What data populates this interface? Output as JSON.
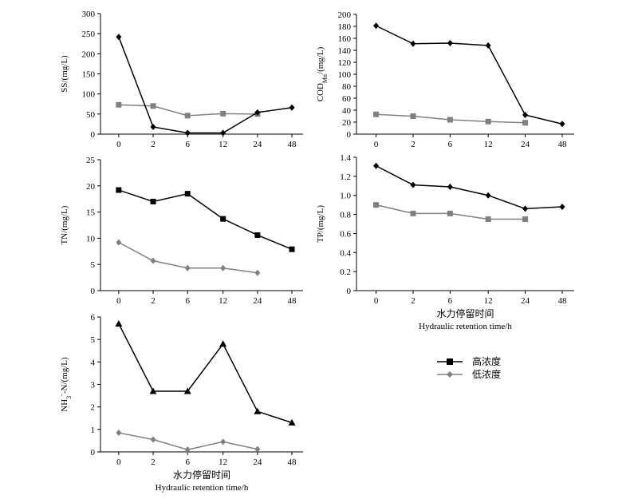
{
  "chart_data": [
    {
      "type": "line",
      "ylabel": "SS/(mg/L)",
      "categories": [
        "0",
        "2",
        "6",
        "12",
        "24",
        "48"
      ],
      "yticks": [
        "0",
        "50",
        "100",
        "150",
        "200",
        "250",
        "300"
      ],
      "ylim": [
        0,
        300
      ],
      "series": [
        {
          "name": "high",
          "marker": "diamond",
          "color": "#000000",
          "values": [
            242,
            18,
            3,
            3,
            54,
            66
          ]
        },
        {
          "name": "low",
          "marker": "square",
          "color": "#808080",
          "values": [
            73,
            70,
            46,
            51,
            50,
            null
          ]
        }
      ]
    },
    {
      "type": "line",
      "ylabel": "COD",
      "ylabel_sub": "Mn",
      "ylabel_tail": "/(mg/L)",
      "categories": [
        "0",
        "2",
        "6",
        "12",
        "24",
        "48"
      ],
      "yticks": [
        "0",
        "20",
        "40",
        "60",
        "80",
        "100",
        "120",
        "140",
        "160",
        "180",
        "200"
      ],
      "ylim": [
        0,
        200
      ],
      "series": [
        {
          "name": "high",
          "marker": "diamond",
          "color": "#000000",
          "values": [
            181,
            151,
            152,
            148,
            32,
            17
          ]
        },
        {
          "name": "low",
          "marker": "square",
          "color": "#808080",
          "values": [
            33,
            30,
            24,
            21,
            19,
            null
          ]
        }
      ]
    },
    {
      "type": "line",
      "ylabel": "TN/(mg/L)",
      "categories": [
        "0",
        "2",
        "6",
        "12",
        "24",
        "48"
      ],
      "yticks": [
        "0",
        "5",
        "10",
        "15",
        "20",
        "25"
      ],
      "ylim": [
        0,
        25
      ],
      "series": [
        {
          "name": "高浓度",
          "marker": "square",
          "color": "#000000",
          "values": [
            19.2,
            17.0,
            18.5,
            13.7,
            10.6,
            7.9
          ]
        },
        {
          "name": "低浓度",
          "marker": "diamond",
          "color": "#808080",
          "values": [
            9.2,
            5.7,
            4.3,
            4.3,
            3.4,
            null
          ]
        }
      ]
    },
    {
      "type": "line",
      "ylabel": "TP/(mg/L)",
      "categories": [
        "0",
        "2",
        "6",
        "12",
        "24",
        "48"
      ],
      "yticks": [
        "0",
        "0.2",
        "0.4",
        "0.6",
        "0.8",
        "1.0",
        "1.2",
        "1.4"
      ],
      "ylim": [
        0,
        1.4
      ],
      "xlabel_cn": "水力停留时间",
      "xlabel_en": "Hydraulic retention time/h",
      "series": [
        {
          "name": "high",
          "marker": "diamond",
          "color": "#000000",
          "values": [
            1.31,
            1.11,
            1.09,
            1.0,
            0.86,
            0.88
          ]
        },
        {
          "name": "low",
          "marker": "square",
          "color": "#808080",
          "values": [
            0.9,
            0.81,
            0.81,
            0.75,
            0.75,
            null
          ]
        }
      ]
    },
    {
      "type": "line",
      "ylabel": "NH",
      "ylabel_sub": "3",
      "ylabel_sup": "-",
      "ylabel_tail": "-N/(mg/L)",
      "categories": [
        "0",
        "2",
        "6",
        "12",
        "24",
        "48"
      ],
      "yticks": [
        "0",
        "1",
        "2",
        "3",
        "4",
        "5",
        "6"
      ],
      "ylim": [
        0,
        6
      ],
      "xlabel_cn": "水力停留时间",
      "xlabel_en": "Hydraulic retention time/h",
      "series": [
        {
          "name": "high",
          "marker": "triangle",
          "color": "#000000",
          "values": [
            5.7,
            2.7,
            2.7,
            4.8,
            1.8,
            1.3
          ]
        },
        {
          "name": "low",
          "marker": "diamond",
          "color": "#808080",
          "values": [
            0.85,
            0.55,
            0.1,
            0.45,
            0.12,
            null
          ]
        }
      ]
    }
  ],
  "legend": {
    "high_label": "高浓度",
    "low_label": "低浓度"
  }
}
